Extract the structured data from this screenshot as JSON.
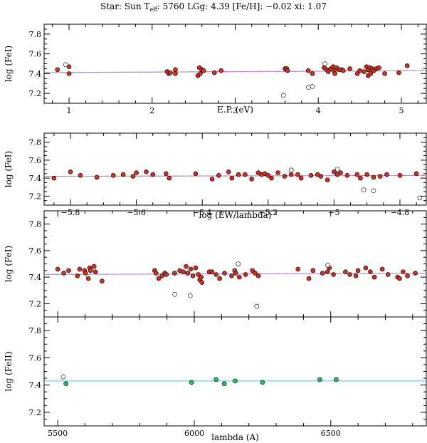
{
  "title": {
    "prefix": "Star: Sun T",
    "sub": "eff",
    "suffix": ": 5760 LGg:  4.39 [Fe/H]: −0.02 xi:  1.07"
  },
  "colors": {
    "fe1_fill": "#d0311f",
    "fe2_fill": "#29c060",
    "fit_blue": "#8aa6ff",
    "fit_pink": "#e874a4",
    "fe2_line": "#7fc6f2"
  },
  "chart_data": [
    {
      "type": "scatter",
      "name": "ep",
      "xlabel": "E.P. (eV)",
      "ylabel": "log (FeI)",
      "xlim": [
        0.7,
        5.3
      ],
      "ylim": [
        7.1,
        7.9
      ],
      "xticks": [
        "1",
        "2",
        "3",
        "4",
        "5"
      ],
      "yticks": [
        "7.2",
        "7.4",
        "7.6",
        "7.8"
      ],
      "fit": [
        7.41,
        7.43
      ],
      "filled": [
        [
          0.86,
          7.44
        ],
        [
          1.0,
          7.4
        ],
        [
          1.0,
          7.47
        ],
        [
          2.18,
          7.42
        ],
        [
          2.2,
          7.4
        ],
        [
          2.22,
          7.41
        ],
        [
          2.28,
          7.44
        ],
        [
          2.28,
          7.4
        ],
        [
          2.55,
          7.38
        ],
        [
          2.57,
          7.46
        ],
        [
          2.58,
          7.4
        ],
        [
          2.6,
          7.44
        ],
        [
          2.62,
          7.43
        ],
        [
          2.75,
          7.41
        ],
        [
          2.83,
          7.43
        ],
        [
          3.6,
          7.45
        ],
        [
          3.62,
          7.45
        ],
        [
          3.63,
          7.43
        ],
        [
          3.88,
          7.43
        ],
        [
          3.93,
          7.4
        ],
        [
          4.07,
          7.46
        ],
        [
          4.1,
          7.44
        ],
        [
          4.12,
          7.42
        ],
        [
          4.15,
          7.45
        ],
        [
          4.18,
          7.47
        ],
        [
          4.19,
          7.43
        ],
        [
          4.2,
          7.4
        ],
        [
          4.22,
          7.46
        ],
        [
          4.25,
          7.44
        ],
        [
          4.28,
          7.44
        ],
        [
          4.3,
          7.43
        ],
        [
          4.38,
          7.45
        ],
        [
          4.47,
          7.4
        ],
        [
          4.5,
          7.43
        ],
        [
          4.55,
          7.42
        ],
        [
          4.58,
          7.47
        ],
        [
          4.6,
          7.44
        ],
        [
          4.6,
          7.38
        ],
        [
          4.62,
          7.46
        ],
        [
          4.63,
          7.4
        ],
        [
          4.65,
          7.45
        ],
        [
          4.67,
          7.43
        ],
        [
          4.7,
          7.45
        ],
        [
          4.73,
          7.46
        ],
        [
          4.8,
          7.4
        ],
        [
          4.97,
          7.41
        ],
        [
          5.07,
          7.48
        ]
      ],
      "open": [
        [
          0.96,
          7.49
        ],
        [
          3.58,
          7.18
        ],
        [
          3.88,
          7.26
        ],
        [
          3.93,
          7.27
        ],
        [
          4.08,
          7.5
        ]
      ]
    },
    {
      "type": "scatter",
      "name": "ew",
      "xlabel": "log (EW/lambda)",
      "ylabel": "log (FeI)",
      "xlim": [
        -5.88,
        -4.72
      ],
      "ylim": [
        7.1,
        7.9
      ],
      "xticks": [
        "−5.8",
        "−5.6",
        "−5.4",
        "−5.2",
        "−5",
        "−4.8"
      ],
      "yticks": [
        "7.2",
        "7.4",
        "7.6",
        "7.8"
      ],
      "fit": [
        7.42,
        7.43
      ],
      "filled": [
        [
          -5.85,
          7.4
        ],
        [
          -5.8,
          7.47
        ],
        [
          -5.77,
          7.43
        ],
        [
          -5.72,
          7.41
        ],
        [
          -5.67,
          7.43
        ],
        [
          -5.64,
          7.44
        ],
        [
          -5.61,
          7.42
        ],
        [
          -5.6,
          7.46
        ],
        [
          -5.57,
          7.47
        ],
        [
          -5.55,
          7.44
        ],
        [
          -5.51,
          7.45
        ],
        [
          -5.5,
          7.4
        ],
        [
          -5.42,
          7.45
        ],
        [
          -5.37,
          7.39
        ],
        [
          -5.35,
          7.43
        ],
        [
          -5.32,
          7.47
        ],
        [
          -5.31,
          7.4
        ],
        [
          -5.29,
          7.44
        ],
        [
          -5.27,
          7.44
        ],
        [
          -5.25,
          7.39
        ],
        [
          -5.23,
          7.46
        ],
        [
          -5.22,
          7.44
        ],
        [
          -5.21,
          7.45
        ],
        [
          -5.2,
          7.43
        ],
        [
          -5.19,
          7.4
        ],
        [
          -5.17,
          7.46
        ],
        [
          -5.15,
          7.42
        ],
        [
          -5.13,
          7.44
        ],
        [
          -5.11,
          7.44
        ],
        [
          -5.1,
          7.4
        ],
        [
          -5.07,
          7.43
        ],
        [
          -5.05,
          7.44
        ],
        [
          -5.04,
          7.42
        ],
        [
          -5.02,
          7.38
        ],
        [
          -5.0,
          7.47
        ],
        [
          -4.99,
          7.44
        ],
        [
          -4.98,
          7.46
        ],
        [
          -4.96,
          7.43
        ],
        [
          -4.93,
          7.44
        ],
        [
          -4.92,
          7.4
        ],
        [
          -4.9,
          7.44
        ],
        [
          -4.88,
          7.41
        ],
        [
          -4.86,
          7.42
        ],
        [
          -4.84,
          7.44
        ],
        [
          -4.8,
          7.43
        ],
        [
          -4.75,
          7.45
        ]
      ],
      "open": [
        [
          -5.13,
          7.49
        ],
        [
          -4.99,
          7.5
        ],
        [
          -4.91,
          7.27
        ],
        [
          -4.88,
          7.26
        ],
        [
          -4.74,
          7.18
        ]
      ]
    },
    {
      "type": "scatter",
      "name": "lam1",
      "xlabel": "",
      "ylabel": "log (FeI)",
      "xlim": [
        5450,
        6850
      ],
      "ylim": [
        7.1,
        7.9
      ],
      "xticks": [],
      "yticks": [
        "7.2",
        "7.4",
        "7.6",
        "7.8"
      ],
      "fit": [
        7.42,
        7.43
      ],
      "filled": [
        [
          5500,
          7.46
        ],
        [
          5522,
          7.43
        ],
        [
          5540,
          7.45
        ],
        [
          5572,
          7.41
        ],
        [
          5580,
          7.46
        ],
        [
          5598,
          7.45
        ],
        [
          5602,
          7.43
        ],
        [
          5612,
          7.39
        ],
        [
          5617,
          7.47
        ],
        [
          5620,
          7.45
        ],
        [
          5633,
          7.48
        ],
        [
          5638,
          7.44
        ],
        [
          5662,
          7.37
        ],
        [
          5855,
          7.45
        ],
        [
          5860,
          7.43
        ],
        [
          5870,
          7.39
        ],
        [
          5882,
          7.41
        ],
        [
          5892,
          7.43
        ],
        [
          5898,
          7.42
        ],
        [
          5928,
          7.43
        ],
        [
          5947,
          7.45
        ],
        [
          5960,
          7.44
        ],
        [
          5970,
          7.48
        ],
        [
          5976,
          7.43
        ],
        [
          5987,
          7.46
        ],
        [
          5995,
          7.41
        ],
        [
          6005,
          7.47
        ],
        [
          6015,
          7.42
        ],
        [
          6020,
          7.38
        ],
        [
          6025,
          7.4
        ],
        [
          6028,
          7.36
        ],
        [
          6055,
          7.44
        ],
        [
          6065,
          7.44
        ],
        [
          6080,
          7.42
        ],
        [
          6093,
          7.39
        ],
        [
          6111,
          7.43
        ],
        [
          6137,
          7.41
        ],
        [
          6148,
          7.45
        ],
        [
          6152,
          7.43
        ],
        [
          6165,
          7.4
        ],
        [
          6188,
          7.42
        ],
        [
          6213,
          7.45
        ],
        [
          6223,
          7.43
        ],
        [
          6235,
          7.41
        ],
        [
          6380,
          7.46
        ],
        [
          6420,
          7.39
        ],
        [
          6435,
          7.45
        ],
        [
          6470,
          7.43
        ],
        [
          6488,
          7.44
        ],
        [
          6495,
          7.47
        ],
        [
          6510,
          7.42
        ],
        [
          6554,
          7.44
        ],
        [
          6570,
          7.42
        ],
        [
          6592,
          7.41
        ],
        [
          6600,
          7.45
        ],
        [
          6628,
          7.47
        ],
        [
          6645,
          7.44
        ],
        [
          6660,
          7.4
        ],
        [
          6689,
          7.46
        ],
        [
          6710,
          7.42
        ],
        [
          6745,
          7.4
        ],
        [
          6752,
          7.39
        ],
        [
          6765,
          7.44
        ],
        [
          6781,
          7.41
        ],
        [
          6810,
          7.43
        ]
      ],
      "open": [
        [
          5929,
          7.27
        ],
        [
          5985,
          7.26
        ],
        [
          6161,
          7.5
        ],
        [
          6229,
          7.18
        ],
        [
          6489,
          7.49
        ]
      ]
    },
    {
      "type": "scatter",
      "name": "lam2",
      "xlabel": "lambda (A)",
      "ylabel": "log (FeII)",
      "xlim": [
        5450,
        6850
      ],
      "ylim": [
        7.1,
        7.9
      ],
      "xticks": [
        "5500",
        "6000",
        "6500"
      ],
      "yticks": [
        "7.2",
        "7.4",
        "7.6",
        "7.8"
      ],
      "fit": [
        7.43,
        7.43
      ],
      "filled": [
        [
          5530,
          7.41
        ],
        [
          5990,
          7.42
        ],
        [
          6080,
          7.44
        ],
        [
          6110,
          7.41
        ],
        [
          6150,
          7.43
        ],
        [
          6250,
          7.42
        ],
        [
          6460,
          7.44
        ],
        [
          6520,
          7.44
        ]
      ],
      "open": [
        [
          5520,
          7.46
        ]
      ]
    }
  ]
}
